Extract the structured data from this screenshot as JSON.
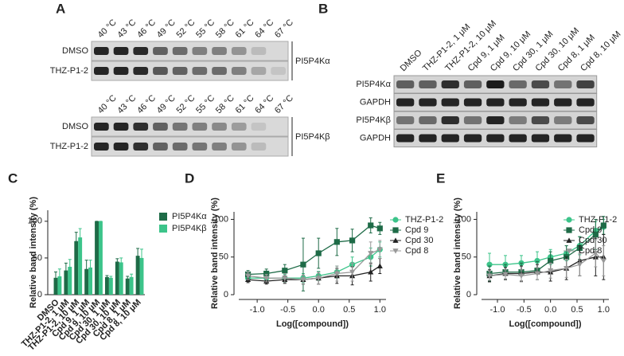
{
  "blots": {
    "A": {
      "label": "A",
      "columns": [
        "40 °C",
        "43 °C",
        "46 °C",
        "49 °C",
        "52 °C",
        "55 °C",
        "58 °C",
        "61 °C",
        "64 °C",
        "67 °C"
      ],
      "gels": [
        {
          "rows": [
            "DMSO",
            "THZ-P1-2"
          ],
          "target": "PI5P4Kα"
        },
        {
          "rows": [
            "DMSO",
            "THZ-P1-2"
          ],
          "target": "PI5P4Kβ"
        }
      ]
    },
    "B": {
      "label": "B",
      "columns": [
        "DMSO",
        "THZ-P1-2, 1 μM",
        "THZ-P1-2, 10 μM",
        "Cpd 9, 1 μM",
        "Cpd 9, 10 μM",
        "Cpd 30, 1 μM",
        "Cpd 30, 10 μM",
        "Cpd 8, 1 μM",
        "Cpd 8, 10 μM"
      ],
      "rows": [
        "PI5P4Kα",
        "GAPDH",
        "PI5P4Kβ",
        "GAPDH"
      ]
    }
  },
  "chart_data": [
    {
      "type": "bar",
      "label": "C",
      "y_label": "Relative band intensity (%)",
      "categories": [
        "DMSO",
        "THZ-P1-2, 1 μM",
        "THZ-P1-2, 10 μM",
        "Cpd 9, 1 μM",
        "Cpd 9, 10 μM",
        "Cpd 30, 1 μM",
        "Cpd 30, 10 μM",
        "Cpd 8, 1 μM",
        "Cpd 8, 10 μM"
      ],
      "series": [
        {
          "name": "PI5P4Kα",
          "color": "#1e6b47",
          "values": [
            23,
            33,
            73,
            35,
            100,
            24,
            45,
            22,
            53
          ],
          "errors": [
            8,
            10,
            12,
            12,
            0,
            2,
            4,
            3,
            10
          ]
        },
        {
          "name": "PI5P4Kβ",
          "color": "#3cc48a",
          "values": [
            25,
            38,
            78,
            37,
            100,
            23,
            44,
            24,
            50
          ],
          "errors": [
            10,
            10,
            12,
            10,
            0,
            2,
            6,
            4,
            12
          ]
        }
      ],
      "ylim": [
        0,
        115
      ],
      "yticks": [
        0,
        50,
        100
      ]
    },
    {
      "type": "line",
      "label": "D",
      "x_label": "Log([compound])",
      "y_label": "Relative band intensity (%)",
      "x": [
        -1.15,
        -0.85,
        -0.55,
        -0.25,
        0.0,
        0.3,
        0.55,
        0.85,
        1.0
      ],
      "series": [
        {
          "name": "THZ-P1-2",
          "color": "#3cc48a",
          "marker": "circle",
          "values": [
            22,
            22,
            22,
            22,
            25,
            30,
            40,
            50,
            60
          ],
          "errors": [
            4,
            4,
            5,
            6,
            6,
            8,
            10,
            12,
            10
          ]
        },
        {
          "name": "Cpd 9",
          "color": "#1e6b47",
          "marker": "square",
          "values": [
            27,
            28,
            32,
            40,
            55,
            70,
            72,
            92,
            88
          ],
          "errors": [
            5,
            6,
            8,
            35,
            20,
            18,
            15,
            10,
            8
          ]
        },
        {
          "name": "Cpd 30",
          "color": "#222222",
          "marker": "triangle",
          "values": [
            20,
            18,
            20,
            20,
            22,
            25,
            25,
            30,
            38
          ],
          "errors": [
            4,
            4,
            5,
            6,
            8,
            10,
            12,
            12,
            10
          ]
        },
        {
          "name": "Cpd 8",
          "color": "#999999",
          "marker": "triangle-down",
          "values": [
            25,
            22,
            22,
            20,
            22,
            28,
            30,
            55,
            60
          ],
          "errors": [
            5,
            5,
            6,
            6,
            8,
            10,
            12,
            15,
            12
          ]
        }
      ],
      "xlim": [
        -1.3,
        1.1
      ],
      "xticks": [
        {
          "value": -1.0,
          "label": "-1.0"
        },
        -0.5,
        {
          "value": 0.0,
          "label": "0.0"
        },
        0.5,
        {
          "value": 1.0,
          "label": "1.0"
        }
      ],
      "ylim": [
        0,
        110
      ],
      "yticks": [
        0,
        50,
        100
      ]
    },
    {
      "type": "line",
      "label": "E",
      "x_label": "Log([compound])",
      "y_label": "Relative band intensity (%)",
      "x": [
        -1.15,
        -0.85,
        -0.55,
        -0.25,
        0.0,
        0.3,
        0.55,
        0.85,
        1.0
      ],
      "series": [
        {
          "name": "THZ-P1-2",
          "color": "#3cc48a",
          "marker": "circle",
          "values": [
            40,
            40,
            42,
            45,
            50,
            55,
            65,
            85,
            90
          ],
          "errors": [
            15,
            12,
            10,
            12,
            10,
            10,
            12,
            12,
            10
          ]
        },
        {
          "name": "Cpd 9",
          "color": "#1e6b47",
          "marker": "square",
          "values": [
            28,
            30,
            30,
            32,
            45,
            50,
            62,
            80,
            92
          ],
          "errors": [
            10,
            10,
            12,
            12,
            12,
            15,
            15,
            20,
            12
          ]
        },
        {
          "name": "Cpd 30",
          "color": "#222222",
          "marker": "triangle",
          "values": [
            25,
            28,
            28,
            30,
            30,
            35,
            45,
            50,
            50
          ],
          "errors": [
            8,
            8,
            10,
            10,
            12,
            15,
            20,
            25,
            30
          ]
        },
        {
          "name": "Cpd 8",
          "color": "#999999",
          "marker": "triangle-down",
          "values": [
            25,
            27,
            25,
            28,
            32,
            35,
            40,
            55,
            45
          ],
          "errors": [
            6,
            6,
            8,
            8,
            10,
            12,
            15,
            18,
            20
          ]
        }
      ],
      "xlim": [
        -1.3,
        1.1
      ],
      "xticks": [
        {
          "value": -1.0,
          "label": "-1.0"
        },
        -0.5,
        {
          "value": 0.0,
          "label": "0.0"
        },
        0.5,
        {
          "value": 1.0,
          "label": "1.0"
        }
      ],
      "ylim": [
        0,
        110
      ],
      "yticks": [
        0,
        50,
        100
      ]
    }
  ]
}
